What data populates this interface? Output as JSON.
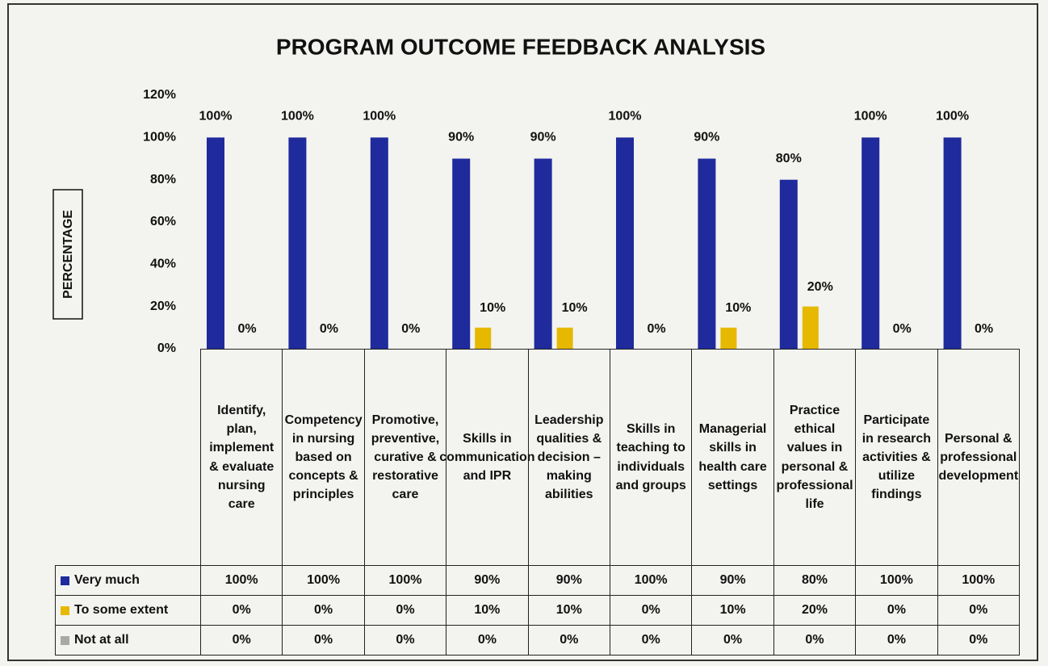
{
  "chart_data": {
    "type": "bar",
    "title": "PROGRAM OUTCOME FEEDBACK ANALYSIS",
    "y_label": "PERCENTAGE",
    "categories": [
      "Identify, plan, implement & evaluate nursing care",
      "Competency in nursing based on concepts & principles",
      "Promotive, preventive, curative & restorative care",
      "Skills in communication and IPR",
      "Leadership qualities & decision – making abilities",
      "Skills in teaching to individuals and groups",
      "Managerial skills in health care settings",
      "Practice ethical values in personal & professional life",
      "Participate in research activities & utilize findings",
      "Personal & professional development"
    ],
    "series": [
      {
        "name": "Very much",
        "color": "#1f2a9c",
        "values": [
          100,
          100,
          100,
          90,
          90,
          100,
          90,
          80,
          100,
          100
        ],
        "value_labels": [
          "100%",
          "100%",
          "100%",
          "90%",
          "90%",
          "100%",
          "90%",
          "80%",
          "100%",
          "100%"
        ]
      },
      {
        "name": "To some extent",
        "color": "#e6b800",
        "values": [
          0,
          0,
          0,
          10,
          10,
          0,
          10,
          20,
          0,
          0
        ],
        "value_labels": [
          "0%",
          "0%",
          "0%",
          "10%",
          "10%",
          "0%",
          "10%",
          "20%",
          "0%",
          "0%"
        ]
      },
      {
        "name": "Not at all",
        "color": "#a8a8a8",
        "values": [
          0,
          0,
          0,
          0,
          0,
          0,
          0,
          0,
          0,
          0
        ],
        "value_labels": [
          "0%",
          "0%",
          "0%",
          "0%",
          "0%",
          "0%",
          "0%",
          "0%",
          "0%",
          "0%"
        ]
      }
    ],
    "show_labels_in_plot": [
      true,
      true,
      false
    ],
    "ylim": [
      0,
      120
    ],
    "yticks": [
      {
        "value": 0,
        "label": "0%"
      },
      {
        "value": 20,
        "label": "20%"
      },
      {
        "value": 40,
        "label": "40%"
      },
      {
        "value": 60,
        "label": "60%"
      },
      {
        "value": 80,
        "label": "80%"
      },
      {
        "value": 100,
        "label": "100%"
      },
      {
        "value": 120,
        "label": "120%"
      }
    ],
    "grid": false
  }
}
